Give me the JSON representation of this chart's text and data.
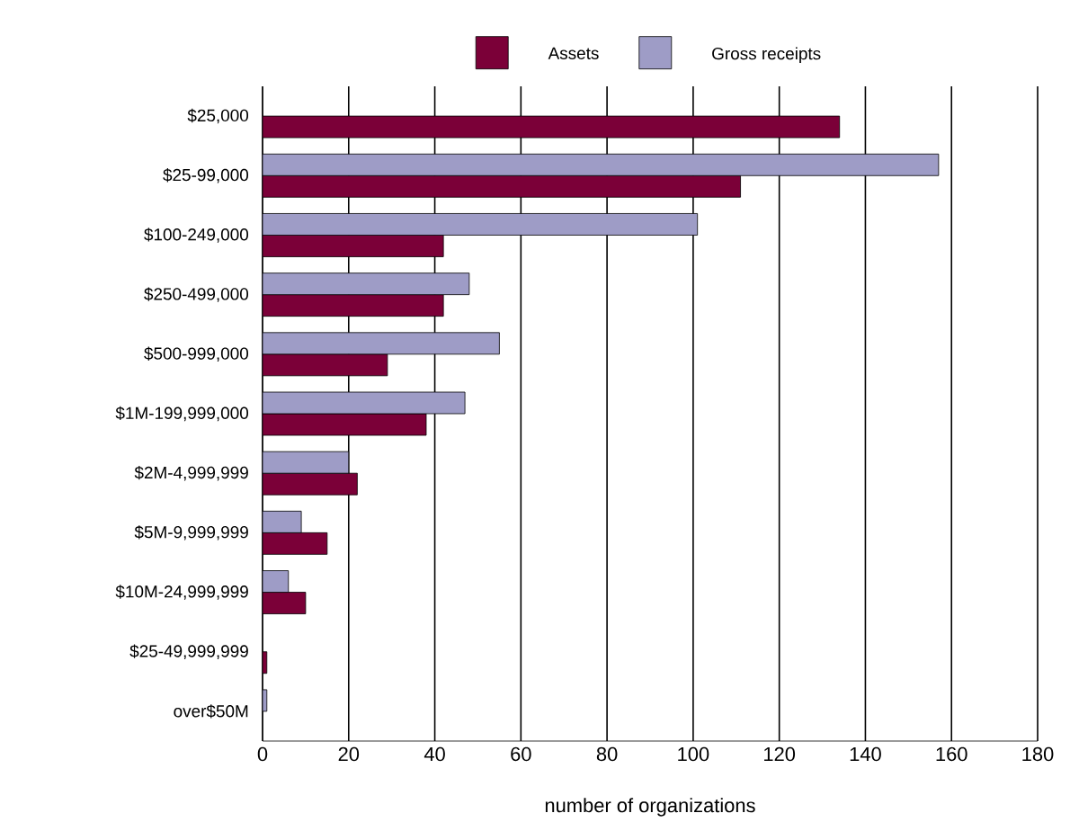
{
  "chart_data": {
    "type": "bar",
    "orientation": "horizontal",
    "xlabel": "number of organizations",
    "categories": [
      "$25,000",
      "$25-99,000",
      "$100-249,000",
      "$250-499,000",
      "$500-999,000",
      "$1M-199,999,000",
      "$2M-4,999,999",
      "$5M-9,999,999",
      "$10M-24,999,999",
      "$25-49,999,999",
      "over$50M"
    ],
    "series": [
      {
        "name": "Assets",
        "color": "#7b0038",
        "values": [
          134,
          111,
          42,
          42,
          29,
          38,
          22,
          15,
          10,
          1,
          null
        ]
      },
      {
        "name": "Gross receipts",
        "color": "#9e9cc6",
        "values": [
          null,
          157,
          101,
          48,
          55,
          47,
          20,
          9,
          6,
          null,
          1
        ]
      }
    ],
    "xlim": [
      0,
      180
    ],
    "xticks": [
      0,
      20,
      40,
      60,
      80,
      100,
      120,
      140,
      160,
      180
    ],
    "grid": "x",
    "legend": "top"
  }
}
